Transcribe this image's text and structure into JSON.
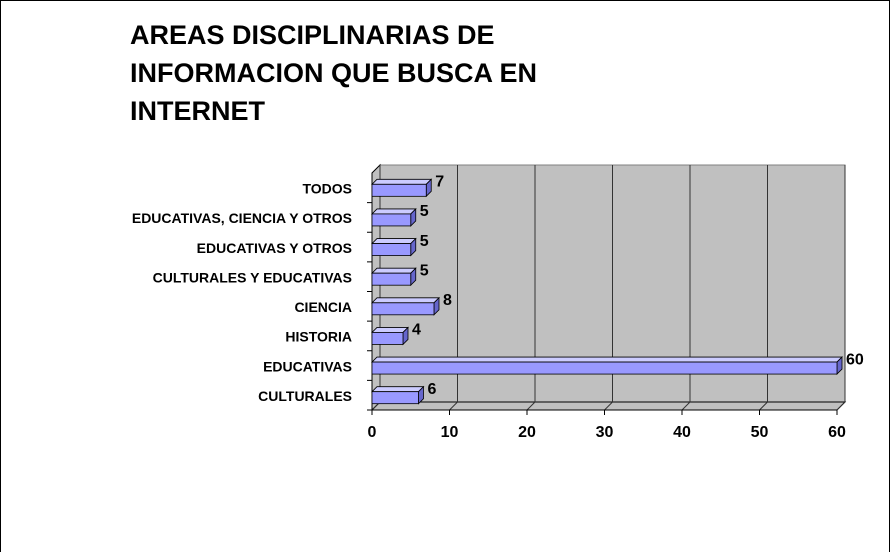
{
  "chart_data": {
    "type": "bar3d_horizontal",
    "title": "AREAS DISCIPLINARIAS DE INFORMACION QUE BUSCA EN INTERNET",
    "categories": [
      "CULTURALES",
      "EDUCATIVAS",
      "HISTORIA",
      "CIENCIA",
      "CULTURALES Y EDUCATIVAS",
      "EDUCATIVAS Y OTROS",
      "EDUCATIVAS, CIENCIA Y OTROS",
      "TODOS"
    ],
    "values": [
      6,
      60,
      4,
      8,
      5,
      5,
      5,
      7
    ],
    "color": "#9999ff",
    "xlim": [
      0,
      60
    ],
    "xticks": [
      0,
      10,
      20,
      30,
      40,
      50,
      60
    ],
    "grid": true
  }
}
